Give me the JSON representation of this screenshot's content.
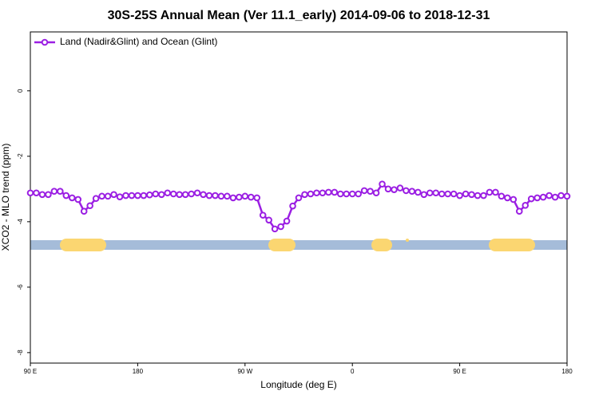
{
  "chart_data": {
    "type": "line",
    "title": "30S-25S Annual Mean (Ver 11.1_early)   2014-09-06 to 2018-12-31",
    "x_label": "Longitude (deg E)",
    "y_label": "XCO2 - MLO trend (ppm)",
    "x": [
      90,
      95,
      100,
      105,
      110,
      115,
      120,
      125,
      130,
      135,
      140,
      145,
      150,
      155,
      160,
      165,
      170,
      175,
      180,
      185,
      190,
      195,
      200,
      205,
      210,
      215,
      220,
      225,
      230,
      235,
      240,
      245,
      250,
      255,
      260,
      265,
      270,
      275,
      280,
      285,
      290,
      295,
      300,
      305,
      310,
      315,
      320,
      325,
      330,
      335,
      340,
      345,
      350,
      355,
      360,
      365,
      370,
      375,
      380,
      385,
      390,
      395,
      400,
      405,
      410,
      415,
      420,
      425,
      430,
      435,
      440,
      445,
      450,
      455,
      460,
      465,
      470,
      475,
      480,
      485,
      490,
      495,
      500,
      505,
      510,
      515,
      520,
      525,
      530,
      535,
      540
    ],
    "series": [
      {
        "name": "Land (Nadir&Glint) and Ocean (Glint)",
        "color": "#9b1fe3",
        "values": [
          -3.12,
          -3.12,
          -3.17,
          -3.17,
          -3.07,
          -3.07,
          -3.2,
          -3.27,
          -3.32,
          -3.68,
          -3.51,
          -3.29,
          -3.22,
          -3.22,
          -3.17,
          -3.24,
          -3.2,
          -3.2,
          -3.2,
          -3.2,
          -3.18,
          -3.15,
          -3.17,
          -3.12,
          -3.15,
          -3.17,
          -3.17,
          -3.15,
          -3.12,
          -3.17,
          -3.2,
          -3.2,
          -3.22,
          -3.22,
          -3.27,
          -3.25,
          -3.22,
          -3.25,
          -3.27,
          -3.8,
          -3.95,
          -4.22,
          -4.15,
          -3.98,
          -3.52,
          -3.27,
          -3.17,
          -3.15,
          -3.12,
          -3.12,
          -3.1,
          -3.1,
          -3.15,
          -3.15,
          -3.15,
          -3.15,
          -3.05,
          -3.07,
          -3.12,
          -2.85,
          -3.0,
          -3.02,
          -2.97,
          -3.05,
          -3.07,
          -3.1,
          -3.17,
          -3.12,
          -3.12,
          -3.15,
          -3.15,
          -3.15,
          -3.2,
          -3.15,
          -3.17,
          -3.2,
          -3.2,
          -3.1,
          -3.1,
          -3.22,
          -3.27,
          -3.32,
          -3.68,
          -3.5,
          -3.3,
          -3.27,
          -3.25,
          -3.2,
          -3.25,
          -3.2,
          -3.22
        ]
      }
    ],
    "xlim": [
      90,
      540
    ],
    "xticks": [
      {
        "value": 90,
        "label": "90 E"
      },
      {
        "value": 180,
        "label": "180"
      },
      {
        "value": 270,
        "label": "90 W"
      },
      {
        "value": 360,
        "label": "0"
      },
      {
        "value": 450,
        "label": "90 E"
      },
      {
        "value": 540,
        "label": "180"
      }
    ],
    "ylim": [
      -8.32,
      1.8
    ],
    "yticks": [
      0,
      -2,
      -4,
      -6,
      -8
    ],
    "legend": "top-left"
  }
}
